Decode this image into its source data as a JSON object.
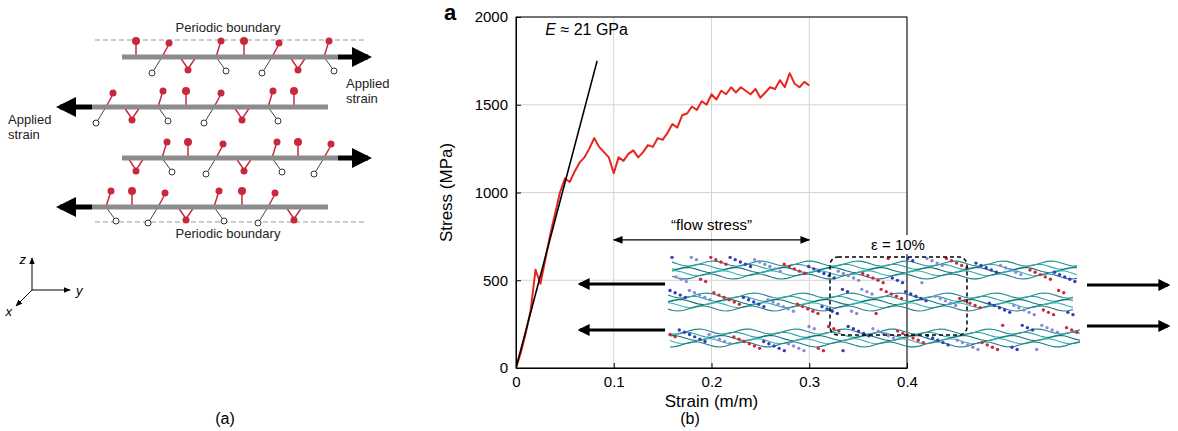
{
  "chart_data": {
    "type": "line",
    "panel_label": "a",
    "xlabel": "Strain (m/m)",
    "ylabel": "Stress (MPa)",
    "xlim": [
      0,
      0.4
    ],
    "xticks": [
      0,
      0.1,
      0.2,
      0.3,
      0.4
    ],
    "ylim": [
      0,
      2000
    ],
    "yticks": [
      0,
      500,
      1000,
      1500,
      2000
    ],
    "grid": true,
    "series": [
      {
        "color": "#e8261e",
        "x": [
          0,
          0.005,
          0.01,
          0.015,
          0.02,
          0.025,
          0.03,
          0.035,
          0.04,
          0.045,
          0.05,
          0.055,
          0.06,
          0.065,
          0.07,
          0.075,
          0.08,
          0.085,
          0.09,
          0.095,
          0.1,
          0.105,
          0.11,
          0.115,
          0.12,
          0.125,
          0.13,
          0.135,
          0.14,
          0.145,
          0.15,
          0.155,
          0.16,
          0.165,
          0.17,
          0.175,
          0.18,
          0.185,
          0.19,
          0.195,
          0.2,
          0.205,
          0.21,
          0.215,
          0.22,
          0.225,
          0.23,
          0.235,
          0.24,
          0.245,
          0.25,
          0.255,
          0.26,
          0.265,
          0.27,
          0.275,
          0.28,
          0.285,
          0.29,
          0.295,
          0.3
        ],
        "values": [
          0,
          90,
          200,
          330,
          560,
          480,
          620,
          760,
          880,
          1000,
          1080,
          1060,
          1120,
          1170,
          1200,
          1250,
          1310,
          1260,
          1230,
          1200,
          1110,
          1200,
          1180,
          1220,
          1240,
          1200,
          1230,
          1270,
          1260,
          1310,
          1300,
          1340,
          1390,
          1370,
          1440,
          1450,
          1490,
          1470,
          1520,
          1500,
          1560,
          1530,
          1580,
          1560,
          1600,
          1570,
          1600,
          1580,
          1560,
          1590,
          1540,
          1570,
          1600,
          1590,
          1640,
          1600,
          1680,
          1620,
          1600,
          1630,
          1610
        ]
      },
      {
        "color": "#000000",
        "x": [
          0,
          0.083
        ],
        "values": [
          0,
          1750
        ]
      }
    ],
    "annotations": [
      {
        "text": "E ≈ 21 GPa",
        "x": 0.03,
        "y": 1900
      },
      {
        "text": "“flow stress”",
        "x": [
          0.1,
          0.3
        ],
        "y": 730
      }
    ],
    "inset": {
      "label": "ε = 10%"
    }
  },
  "diagram": {
    "boundary_labels": [
      "Periodic boundary",
      "Periodic boundary"
    ],
    "strain_labels": [
      "Applied strain",
      "Applied strain"
    ],
    "axes": [
      "z",
      "y",
      "x"
    ]
  },
  "panel_labels": [
    "(a)",
    "(b)"
  ]
}
